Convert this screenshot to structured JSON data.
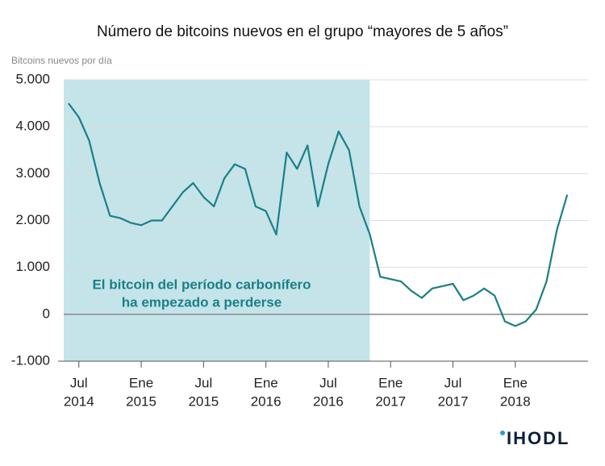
{
  "chart_data": {
    "type": "line",
    "title": "Número de bitcoins nuevos en el grupo “mayores de 5 años”",
    "y_label": "Bitcoins nuevos por día",
    "x": [
      "2014-06",
      "2014-07",
      "2014-08",
      "2014-09",
      "2014-10",
      "2014-11",
      "2014-12",
      "2015-01",
      "2015-02",
      "2015-03",
      "2015-04",
      "2015-05",
      "2015-06",
      "2015-07",
      "2015-08",
      "2015-09",
      "2015-10",
      "2015-11",
      "2015-12",
      "2016-01",
      "2016-02",
      "2016-03",
      "2016-04",
      "2016-05",
      "2016-06",
      "2016-07",
      "2016-08",
      "2016-09",
      "2016-10",
      "2016-11",
      "2016-12",
      "2017-01",
      "2017-02",
      "2017-03",
      "2017-04",
      "2017-05",
      "2017-06",
      "2017-07",
      "2017-08",
      "2017-09",
      "2017-10",
      "2017-11",
      "2017-12",
      "2018-01",
      "2018-02",
      "2018-03",
      "2018-04",
      "2018-05",
      "2018-06"
    ],
    "values": [
      4500,
      4200,
      3700,
      2800,
      2100,
      2050,
      1950,
      1900,
      2000,
      2000,
      2300,
      2600,
      2800,
      2500,
      2300,
      2900,
      3200,
      3100,
      2300,
      2200,
      1700,
      3450,
      3100,
      3600,
      2300,
      3200,
      3900,
      3500,
      2300,
      1700,
      800,
      750,
      700,
      500,
      350,
      550,
      600,
      650,
      300,
      400,
      550,
      400,
      -150,
      -250,
      -150,
      100,
      700,
      1800,
      2550
    ],
    "color": "#1a7f86",
    "xlim": [
      "2014-05",
      "2018-08"
    ],
    "xticks": [
      {
        "value": "2014-07",
        "label": [
          "Jul",
          "2014"
        ]
      },
      {
        "value": "2015-01",
        "label": [
          "Ene",
          "2015"
        ]
      },
      {
        "value": "2015-07",
        "label": [
          "Jul",
          "2015"
        ]
      },
      {
        "value": "2016-01",
        "label": [
          "Ene",
          "2016"
        ]
      },
      {
        "value": "2016-07",
        "label": [
          "Jul",
          "2016"
        ]
      },
      {
        "value": "2017-01",
        "label": [
          "Ene",
          "2017"
        ]
      },
      {
        "value": "2017-07",
        "label": [
          "Jul",
          "2017"
        ]
      },
      {
        "value": "2018-01",
        "label": [
          "Ene",
          "2018"
        ]
      }
    ],
    "ylim": [
      -1000,
      5000
    ],
    "yticks": [
      {
        "value": -1000,
        "label": "-1.000"
      },
      0,
      {
        "value": 1000,
        "label": "1.000"
      },
      {
        "value": 2000,
        "label": "2.000"
      },
      {
        "value": 3000,
        "label": "3.000"
      },
      {
        "value": 4000,
        "label": "4.000"
      },
      {
        "value": 5000,
        "label": "5.000"
      }
    ],
    "grid": true,
    "shade": {
      "from": "2014-05",
      "to": "2016-11",
      "color": "#c4e4e9",
      "label": [
        "El bitcoin del período carbonífero",
        "ha empezado a perderse"
      ]
    }
  },
  "logo": "IHODL"
}
